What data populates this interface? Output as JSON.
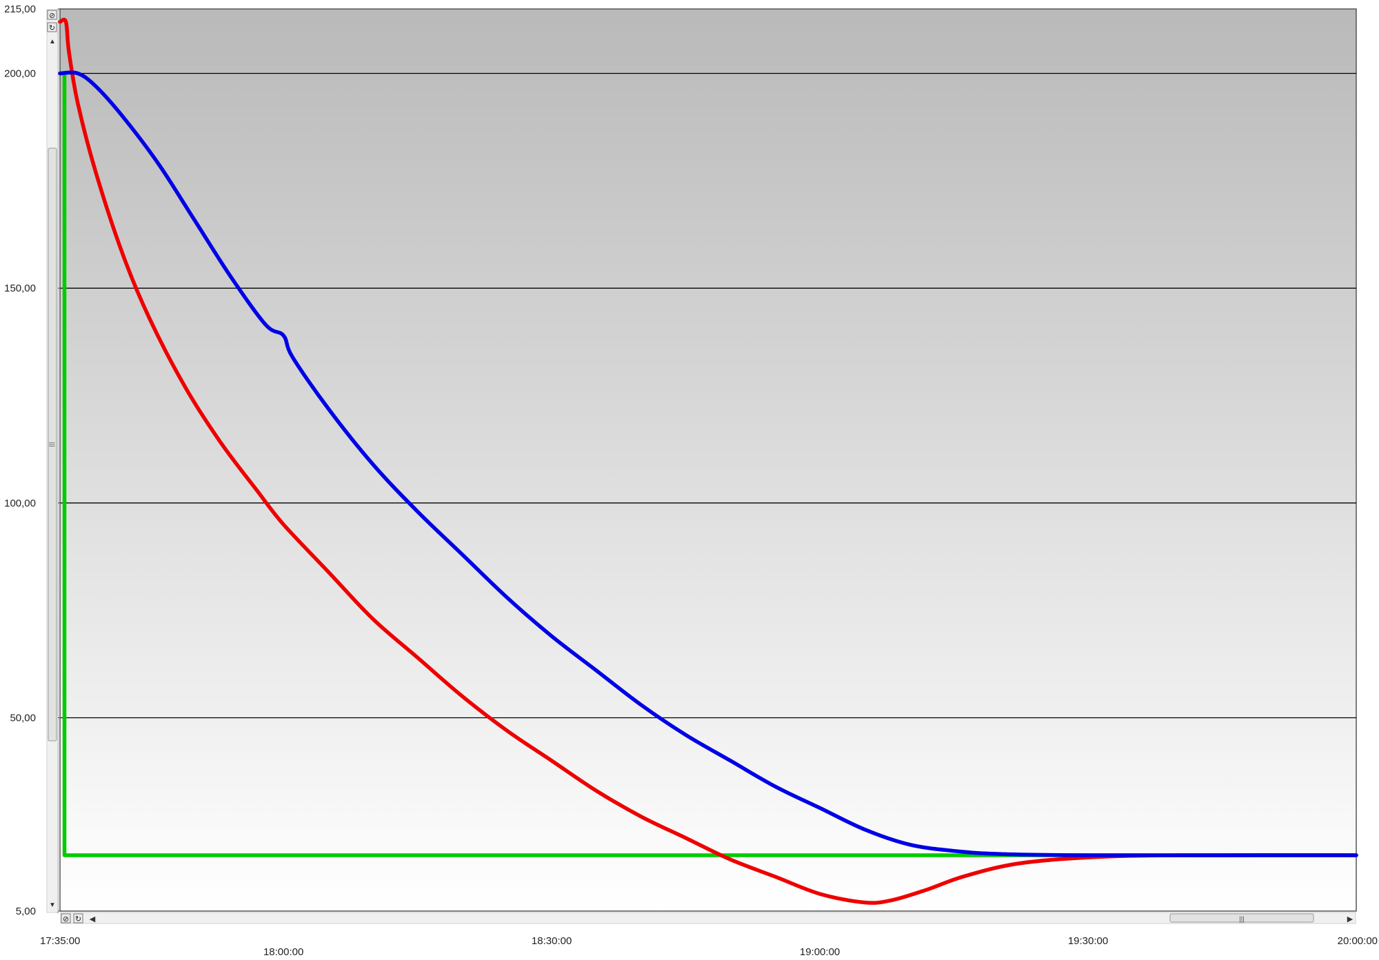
{
  "chart_data": {
    "type": "line",
    "title": "",
    "xlabel": "",
    "ylabel": "",
    "x_axis": {
      "min": "17:35:00",
      "max": "20:00:00",
      "tick_labels": [
        "17:35:00",
        "18:00:00",
        "18:30:00",
        "19:00:00",
        "19:30:00",
        "20:00:00"
      ]
    },
    "y_axis": {
      "min": 5,
      "max": 215,
      "tick_labels": [
        "215,00",
        "200,00",
        "150,00",
        "100,00",
        "50,00",
        "5,00"
      ]
    },
    "grid": true,
    "colors": {
      "red_series": "#ee0000",
      "blue_series": "#0000e6",
      "green_series": "#00cc00"
    },
    "series": [
      {
        "color": "#ee0000",
        "points": [
          [
            "17:35:00",
            212
          ],
          [
            "17:35:40",
            212
          ],
          [
            "17:36:00",
            205
          ],
          [
            "17:37:00",
            193
          ],
          [
            "17:39:00",
            177
          ],
          [
            "17:42:00",
            158
          ],
          [
            "17:45:00",
            143
          ],
          [
            "17:49:00",
            127
          ],
          [
            "17:53:00",
            114
          ],
          [
            "17:57:00",
            103
          ],
          [
            "18:00:00",
            95
          ],
          [
            "18:05:00",
            84
          ],
          [
            "18:10:00",
            73
          ],
          [
            "18:15:00",
            64
          ],
          [
            "18:20:00",
            55
          ],
          [
            "18:25:00",
            47
          ],
          [
            "18:30:00",
            40
          ],
          [
            "18:35:00",
            33
          ],
          [
            "18:40:00",
            27
          ],
          [
            "18:45:00",
            22
          ],
          [
            "18:50:00",
            17
          ],
          [
            "18:55:00",
            13
          ],
          [
            "19:00:00",
            9
          ],
          [
            "19:05:00",
            7
          ],
          [
            "19:08:00",
            7.5
          ],
          [
            "19:12:00",
            10
          ],
          [
            "19:16:00",
            13
          ],
          [
            "19:22:00",
            16
          ],
          [
            "19:30:00",
            17.5
          ],
          [
            "19:40:00",
            18
          ],
          [
            "20:00:00",
            18
          ]
        ]
      },
      {
        "color": "#0000e6",
        "points": [
          [
            "17:35:00",
            200
          ],
          [
            "17:37:00",
            200
          ],
          [
            "17:39:00",
            197
          ],
          [
            "17:42:00",
            190
          ],
          [
            "17:46:00",
            179
          ],
          [
            "17:50:00",
            166
          ],
          [
            "17:54:00",
            153
          ],
          [
            "17:58:00",
            141.5
          ],
          [
            "18:00:00",
            139
          ],
          [
            "18:01:00",
            134
          ],
          [
            "18:05:00",
            122
          ],
          [
            "18:10:00",
            109
          ],
          [
            "18:15:00",
            98
          ],
          [
            "18:20:00",
            88
          ],
          [
            "18:25:00",
            78
          ],
          [
            "18:30:00",
            69
          ],
          [
            "18:35:00",
            61
          ],
          [
            "18:40:00",
            53
          ],
          [
            "18:45:00",
            46
          ],
          [
            "18:50:00",
            40
          ],
          [
            "18:55:00",
            34
          ],
          [
            "19:00:00",
            29
          ],
          [
            "19:05:00",
            24
          ],
          [
            "19:10:00",
            20.5
          ],
          [
            "19:15:00",
            19
          ],
          [
            "19:20:00",
            18.3
          ],
          [
            "19:30:00",
            18
          ],
          [
            "20:00:00",
            18
          ]
        ]
      },
      {
        "color": "#00cc00",
        "points": [
          [
            "17:35:00",
            200
          ],
          [
            "17:35:30",
            200
          ],
          [
            "17:35:30",
            18
          ],
          [
            "20:00:00",
            18
          ]
        ]
      }
    ]
  }
}
